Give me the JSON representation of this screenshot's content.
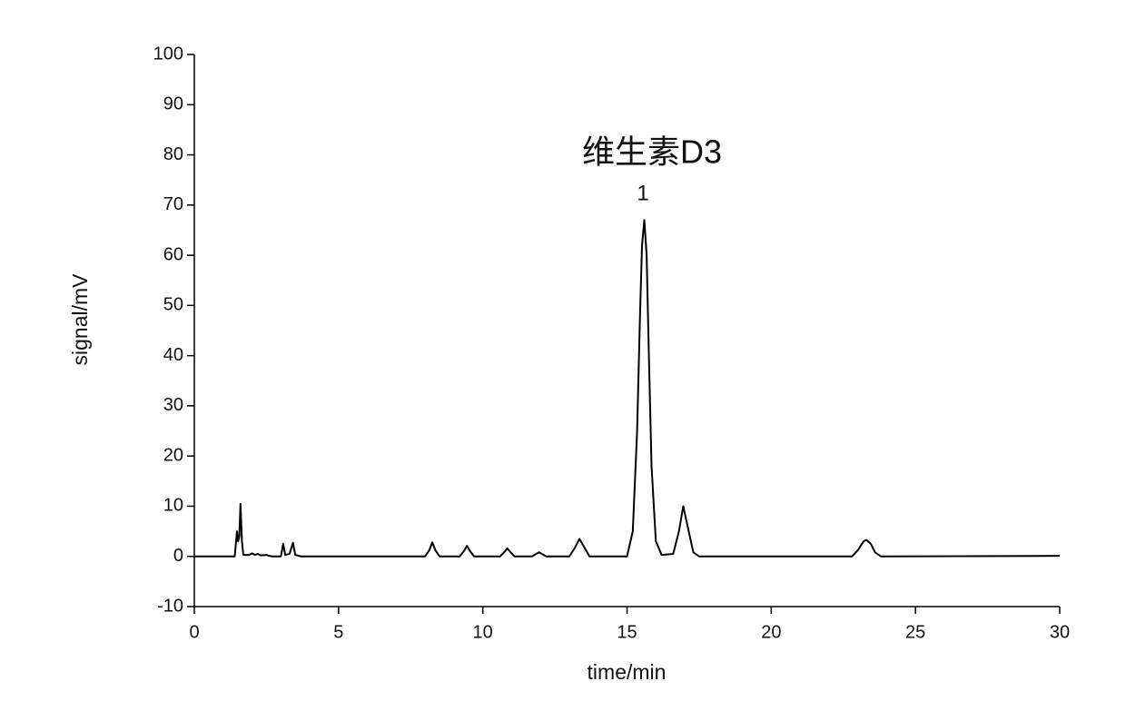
{
  "chart_data": {
    "type": "line",
    "annotations": [
      "维生素D3",
      "1"
    ],
    "xlabel": "time/min",
    "ylabel": "signal/mV",
    "x": [
      0,
      1.4,
      1.48,
      1.52,
      1.56,
      1.6,
      1.65,
      1.7,
      1.9,
      2.0,
      2.1,
      2.2,
      2.3,
      2.5,
      2.6,
      2.7,
      3.0,
      3.08,
      3.15,
      3.3,
      3.42,
      3.5,
      3.7,
      8.0,
      8.15,
      8.25,
      8.35,
      8.5,
      9.2,
      9.35,
      9.45,
      9.55,
      9.7,
      10.6,
      10.75,
      10.85,
      10.95,
      11.1,
      11.7,
      11.85,
      11.95,
      12.05,
      12.2,
      13.0,
      13.2,
      13.35,
      13.5,
      13.7,
      15.0,
      15.2,
      15.35,
      15.45,
      15.52,
      15.6,
      15.68,
      15.75,
      15.85,
      16.0,
      16.2,
      16.6,
      16.8,
      16.95,
      17.1,
      17.3,
      17.5,
      22.8,
      23.0,
      23.2,
      23.3,
      23.45,
      23.6,
      23.8,
      30
    ],
    "values": [
      0,
      0,
      5,
      3,
      4,
      10.5,
      3,
      0.3,
      0.3,
      0.6,
      0.3,
      0.5,
      0.2,
      0.3,
      0.1,
      0,
      0,
      2.5,
      0.3,
      0.5,
      2.7,
      0.3,
      0,
      0,
      1.3,
      2.8,
      1.3,
      0,
      0,
      1.1,
      2.1,
      1.1,
      0,
      0,
      0.9,
      1.6,
      0.9,
      0,
      0,
      0.5,
      0.8,
      0.5,
      0,
      0,
      1.8,
      3.5,
      2.0,
      0,
      0,
      5,
      25,
      48,
      62,
      67,
      60,
      42,
      18,
      3,
      0.3,
      0.5,
      5,
      10,
      6,
      0.8,
      0,
      0,
      1.2,
      3,
      3.3,
      2.5,
      0.8,
      0,
      0.1
    ],
    "color": "#000000",
    "xlim": [
      0,
      30
    ],
    "xticks": [
      0,
      5,
      10,
      15,
      20,
      25,
      30
    ],
    "ylim": [
      -10,
      100
    ],
    "yticks": [
      -10,
      0,
      10,
      20,
      30,
      40,
      50,
      60,
      70,
      80,
      90,
      100
    ]
  }
}
